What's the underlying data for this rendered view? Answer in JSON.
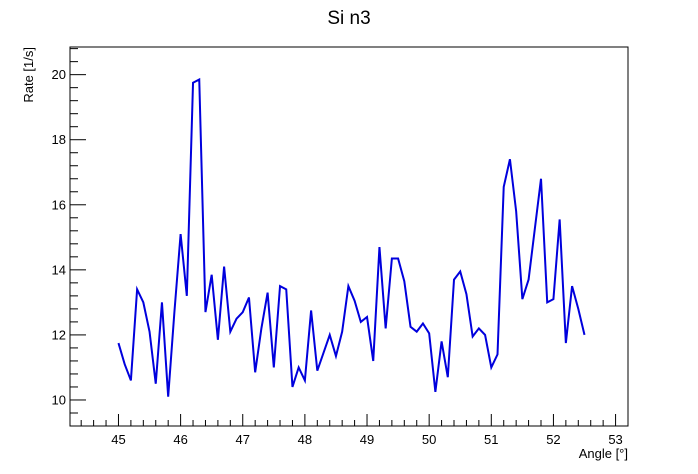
{
  "chart_data": {
    "type": "line",
    "title": "Si n3",
    "xlabel": "Angle [°]",
    "ylabel": "Rate [1/s]",
    "xlim": [
      44.22,
      53.2
    ],
    "ylim": [
      9.2,
      20.85
    ],
    "x_major_ticks": [
      45,
      46,
      47,
      48,
      49,
      50,
      51,
      52,
      53
    ],
    "y_major_ticks": [
      10,
      12,
      14,
      16,
      18,
      20
    ],
    "grid": false,
    "line_color": "#0000dd",
    "series": [
      {
        "x": [
          45.0,
          45.1,
          45.2,
          45.3,
          45.4,
          45.5,
          45.6,
          45.7,
          45.8,
          45.9,
          46.0,
          46.1,
          46.2,
          46.3,
          46.4,
          46.5,
          46.6,
          46.7,
          46.8,
          46.9,
          47.0,
          47.1,
          47.2,
          47.3,
          47.4,
          47.5,
          47.6,
          47.7,
          47.8,
          47.9,
          48.0,
          48.1,
          48.2,
          48.3,
          48.4,
          48.5,
          48.6,
          48.7,
          48.8,
          48.9,
          49.0,
          49.1,
          49.2,
          49.3,
          49.4,
          49.5,
          49.6,
          49.7,
          49.8,
          49.9,
          50.0,
          50.1,
          50.2,
          50.3,
          50.4,
          50.5,
          50.6,
          50.7,
          50.8,
          50.9,
          51.0,
          51.1,
          51.2,
          51.3,
          51.4,
          51.5,
          51.6,
          51.7,
          51.8,
          51.9,
          52.0,
          52.1,
          52.2,
          52.3,
          52.4,
          52.5
        ],
        "values": [
          11.75,
          11.1,
          10.6,
          13.4,
          13.0,
          12.1,
          10.5,
          13.0,
          10.1,
          12.7,
          15.1,
          13.2,
          19.75,
          19.85,
          12.7,
          13.85,
          11.85,
          14.1,
          12.1,
          12.5,
          12.7,
          13.15,
          10.85,
          12.2,
          13.3,
          11.0,
          13.5,
          13.4,
          10.4,
          11.0,
          10.6,
          12.75,
          10.9,
          11.45,
          12.0,
          11.35,
          12.1,
          13.5,
          13.05,
          12.4,
          12.55,
          11.2,
          14.7,
          12.2,
          14.35,
          14.35,
          13.65,
          12.25,
          12.1,
          12.35,
          12.05,
          10.25,
          11.8,
          10.7,
          13.7,
          13.95,
          13.25,
          11.95,
          12.2,
          12.0,
          11.0,
          11.4,
          16.55,
          17.4,
          15.8,
          13.1,
          13.7,
          15.25,
          16.8,
          13.0,
          13.1,
          15.55,
          11.75,
          13.5,
          12.8,
          12.0
        ]
      }
    ]
  }
}
